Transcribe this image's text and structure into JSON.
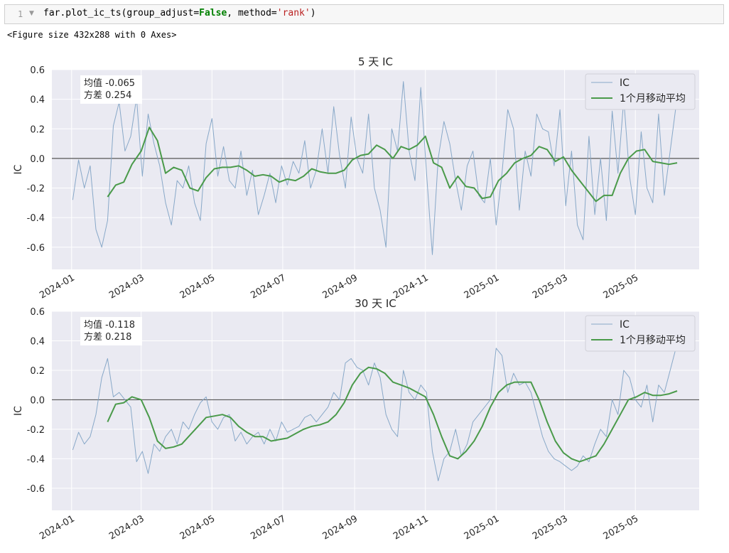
{
  "cell": {
    "line_number": "1",
    "code_prefix": "far.plot_ic_ts(group_adjust=",
    "code_keyword": "False",
    "code_mid": ", method=",
    "code_string": "'rank'",
    "code_suffix": ")"
  },
  "output_text": "<Figure size 432x288 with 0 Axes>",
  "colors": {
    "ic": "#88a8c8",
    "ma": "#4a9a4a",
    "zero": "#555555",
    "plot_bg": "#eaeaf2",
    "grid": "#ffffff"
  },
  "chart_data": [
    {
      "type": "line",
      "title": "5 天 IC",
      "ylabel": "IC",
      "ylim": [
        -0.75,
        0.6
      ],
      "yticks": [
        "0.6",
        "0.4",
        "0.2",
        "0.0",
        "-0.2",
        "-0.4",
        "-0.6"
      ],
      "ytick_values": [
        0.6,
        0.4,
        0.2,
        0.0,
        -0.2,
        -0.4,
        -0.6
      ],
      "xlim": [
        "2023-12-15",
        "2025-06-25"
      ],
      "xticks": [
        "2024-01",
        "2024-03",
        "2024-05",
        "2024-07",
        "2024-09",
        "2024-11",
        "2025-01",
        "2025-03",
        "2025-05"
      ],
      "xtick_dates": [
        "2024-01-01",
        "2024-03-01",
        "2024-05-01",
        "2024-07-01",
        "2024-09-01",
        "2024-11-01",
        "2025-01-01",
        "2025-03-01",
        "2025-05-01"
      ],
      "stats": {
        "mean": "均值 -0.065",
        "std": "方差 0.254"
      },
      "legend": {
        "position": "top-right",
        "entries": [
          "IC",
          "1个月移动平均"
        ]
      },
      "grid": true,
      "series": [
        {
          "name": "IC",
          "x": [
            "2024-01-02",
            "2024-01-07",
            "2024-01-12",
            "2024-01-17",
            "2024-01-22",
            "2024-01-27",
            "2024-02-01",
            "2024-02-06",
            "2024-02-11",
            "2024-02-16",
            "2024-02-21",
            "2024-02-26",
            "2024-03-02",
            "2024-03-07",
            "2024-03-12",
            "2024-03-17",
            "2024-03-22",
            "2024-03-27",
            "2024-04-01",
            "2024-04-06",
            "2024-04-11",
            "2024-04-16",
            "2024-04-21",
            "2024-04-26",
            "2024-05-01",
            "2024-05-06",
            "2024-05-11",
            "2024-05-16",
            "2024-05-21",
            "2024-05-26",
            "2024-05-31",
            "2024-06-05",
            "2024-06-10",
            "2024-06-15",
            "2024-06-20",
            "2024-06-25",
            "2024-06-30",
            "2024-07-05",
            "2024-07-10",
            "2024-07-15",
            "2024-07-20",
            "2024-07-25",
            "2024-07-30",
            "2024-08-04",
            "2024-08-09",
            "2024-08-14",
            "2024-08-19",
            "2024-08-24",
            "2024-08-29",
            "2024-09-03",
            "2024-09-08",
            "2024-09-13",
            "2024-09-18",
            "2024-09-23",
            "2024-09-28",
            "2024-10-03",
            "2024-10-08",
            "2024-10-13",
            "2024-10-18",
            "2024-10-23",
            "2024-10-28",
            "2024-11-02",
            "2024-11-07",
            "2024-11-12",
            "2024-11-17",
            "2024-11-22",
            "2024-11-27",
            "2024-12-02",
            "2024-12-07",
            "2024-12-12",
            "2024-12-17",
            "2024-12-22",
            "2024-12-27",
            "2025-01-01",
            "2025-01-06",
            "2025-01-11",
            "2025-01-16",
            "2025-01-21",
            "2025-01-26",
            "2025-01-31",
            "2025-02-05",
            "2025-02-10",
            "2025-02-15",
            "2025-02-20",
            "2025-02-25",
            "2025-03-02",
            "2025-03-07",
            "2025-03-12",
            "2025-03-17",
            "2025-03-22",
            "2025-03-27",
            "2025-04-01",
            "2025-04-06",
            "2025-04-11",
            "2025-04-16",
            "2025-04-21",
            "2025-04-26",
            "2025-05-01",
            "2025-05-06",
            "2025-05-11",
            "2025-05-16",
            "2025-05-21",
            "2025-05-26",
            "2025-05-31",
            "2025-06-05"
          ],
          "y": [
            -0.28,
            -0.01,
            -0.2,
            -0.05,
            -0.48,
            -0.6,
            -0.42,
            0.22,
            0.38,
            0.05,
            0.15,
            0.41,
            -0.12,
            0.3,
            0.1,
            -0.05,
            -0.3,
            -0.45,
            -0.15,
            -0.2,
            -0.05,
            -0.3,
            -0.42,
            0.1,
            0.27,
            -0.12,
            0.08,
            -0.15,
            -0.2,
            0.05,
            -0.25,
            -0.08,
            -0.38,
            -0.25,
            -0.1,
            -0.3,
            -0.05,
            -0.18,
            -0.02,
            -0.1,
            0.12,
            -0.2,
            -0.08,
            0.2,
            -0.1,
            0.35,
            0.02,
            -0.2,
            0.28,
            0.0,
            -0.1,
            0.3,
            -0.2,
            -0.35,
            -0.6,
            0.2,
            0.05,
            0.52,
            0.05,
            -0.15,
            0.48,
            -0.1,
            -0.65,
            0.0,
            0.25,
            0.1,
            -0.15,
            -0.35,
            -0.05,
            0.05,
            -0.25,
            -0.3,
            0.0,
            -0.45,
            -0.1,
            0.33,
            0.2,
            -0.35,
            0.05,
            -0.12,
            0.3,
            0.2,
            0.18,
            -0.05,
            0.33,
            -0.32,
            0.05,
            -0.45,
            -0.55,
            0.15,
            -0.38,
            0.0,
            -0.42,
            0.32,
            -0.1,
            0.4,
            -0.12,
            -0.38,
            0.18,
            -0.2,
            -0.3,
            0.3,
            -0.25,
            0.05,
            0.35
          ],
          "color": "#88a8c8"
        },
        {
          "name": "1个月移动平均",
          "x": [
            "2024-02-01",
            "2024-02-08",
            "2024-02-15",
            "2024-02-22",
            "2024-03-01",
            "2024-03-08",
            "2024-03-15",
            "2024-03-22",
            "2024-03-29",
            "2024-04-05",
            "2024-04-12",
            "2024-04-19",
            "2024-04-26",
            "2024-05-03",
            "2024-05-10",
            "2024-05-17",
            "2024-05-24",
            "2024-05-31",
            "2024-06-07",
            "2024-06-14",
            "2024-06-21",
            "2024-06-28",
            "2024-07-05",
            "2024-07-12",
            "2024-07-19",
            "2024-07-26",
            "2024-08-02",
            "2024-08-09",
            "2024-08-16",
            "2024-08-23",
            "2024-08-30",
            "2024-09-06",
            "2024-09-13",
            "2024-09-20",
            "2024-09-27",
            "2024-10-04",
            "2024-10-11",
            "2024-10-18",
            "2024-10-25",
            "2024-11-01",
            "2024-11-08",
            "2024-11-15",
            "2024-11-22",
            "2024-11-29",
            "2024-12-06",
            "2024-12-13",
            "2024-12-20",
            "2024-12-27",
            "2025-01-03",
            "2025-01-10",
            "2025-01-17",
            "2025-01-24",
            "2025-01-31",
            "2025-02-07",
            "2025-02-14",
            "2025-02-21",
            "2025-02-28",
            "2025-03-07",
            "2025-03-14",
            "2025-03-21",
            "2025-03-28",
            "2025-04-04",
            "2025-04-11",
            "2025-04-18",
            "2025-04-25",
            "2025-05-02",
            "2025-05-09",
            "2025-05-16",
            "2025-05-23",
            "2025-05-30",
            "2025-06-06"
          ],
          "y": [
            -0.26,
            -0.18,
            -0.16,
            -0.04,
            0.05,
            0.21,
            0.12,
            -0.1,
            -0.06,
            -0.08,
            -0.2,
            -0.22,
            -0.13,
            -0.07,
            -0.06,
            -0.06,
            -0.05,
            -0.08,
            -0.12,
            -0.11,
            -0.12,
            -0.16,
            -0.14,
            -0.15,
            -0.12,
            -0.07,
            -0.09,
            -0.1,
            -0.1,
            -0.08,
            -0.01,
            0.02,
            0.03,
            0.09,
            0.06,
            0.0,
            0.08,
            0.06,
            0.09,
            0.15,
            -0.03,
            -0.06,
            -0.2,
            -0.12,
            -0.19,
            -0.2,
            -0.27,
            -0.26,
            -0.15,
            -0.1,
            -0.03,
            0.0,
            0.02,
            0.08,
            0.06,
            -0.02,
            0.01,
            -0.08,
            -0.15,
            -0.22,
            -0.29,
            -0.25,
            -0.25,
            -0.1,
            0.0,
            0.05,
            0.06,
            -0.02,
            -0.03,
            -0.04,
            -0.03
          ],
          "color": "#4a9a4a"
        }
      ]
    },
    {
      "type": "line",
      "title": "30 天 IC",
      "ylabel": "IC",
      "ylim": [
        -0.75,
        0.6
      ],
      "yticks": [
        "0.6",
        "0.4",
        "0.2",
        "0.0",
        "-0.2",
        "-0.4",
        "-0.6"
      ],
      "ytick_values": [
        0.6,
        0.4,
        0.2,
        0.0,
        -0.2,
        -0.4,
        -0.6
      ],
      "xlim": [
        "2023-12-15",
        "2025-06-25"
      ],
      "xticks": [
        "2024-01",
        "2024-03",
        "2024-05",
        "2024-07",
        "2024-09",
        "2024-11",
        "2025-01",
        "2025-03",
        "2025-05"
      ],
      "xtick_dates": [
        "2024-01-01",
        "2024-03-01",
        "2024-05-01",
        "2024-07-01",
        "2024-09-01",
        "2024-11-01",
        "2025-01-01",
        "2025-03-01",
        "2025-05-01"
      ],
      "stats": {
        "mean": "均值 -0.118",
        "std": "方差 0.218"
      },
      "legend": {
        "position": "top-right",
        "entries": [
          "IC",
          "1个月移动平均"
        ]
      },
      "grid": true,
      "series": [
        {
          "name": "IC",
          "x": [
            "2024-01-02",
            "2024-01-07",
            "2024-01-12",
            "2024-01-17",
            "2024-01-22",
            "2024-01-27",
            "2024-02-01",
            "2024-02-06",
            "2024-02-11",
            "2024-02-16",
            "2024-02-21",
            "2024-02-26",
            "2024-03-02",
            "2024-03-07",
            "2024-03-12",
            "2024-03-17",
            "2024-03-22",
            "2024-03-27",
            "2024-04-01",
            "2024-04-06",
            "2024-04-11",
            "2024-04-16",
            "2024-04-21",
            "2024-04-26",
            "2024-05-01",
            "2024-05-06",
            "2024-05-11",
            "2024-05-16",
            "2024-05-21",
            "2024-05-26",
            "2024-05-31",
            "2024-06-05",
            "2024-06-10",
            "2024-06-15",
            "2024-06-20",
            "2024-06-25",
            "2024-06-30",
            "2024-07-05",
            "2024-07-10",
            "2024-07-15",
            "2024-07-20",
            "2024-07-25",
            "2024-07-30",
            "2024-08-04",
            "2024-08-09",
            "2024-08-14",
            "2024-08-19",
            "2024-08-24",
            "2024-08-29",
            "2024-09-03",
            "2024-09-08",
            "2024-09-13",
            "2024-09-18",
            "2024-09-23",
            "2024-09-28",
            "2024-10-03",
            "2024-10-08",
            "2024-10-13",
            "2024-10-18",
            "2024-10-23",
            "2024-10-28",
            "2024-11-02",
            "2024-11-07",
            "2024-11-12",
            "2024-11-17",
            "2024-11-22",
            "2024-11-27",
            "2024-12-02",
            "2024-12-07",
            "2024-12-12",
            "2024-12-17",
            "2024-12-22",
            "2024-12-27",
            "2025-01-01",
            "2025-01-06",
            "2025-01-11",
            "2025-01-16",
            "2025-01-21",
            "2025-01-26",
            "2025-01-31",
            "2025-02-05",
            "2025-02-10",
            "2025-02-15",
            "2025-02-20",
            "2025-02-25",
            "2025-03-02",
            "2025-03-07",
            "2025-03-12",
            "2025-03-17",
            "2025-03-22",
            "2025-03-27",
            "2025-04-01",
            "2025-04-06",
            "2025-04-11",
            "2025-04-16",
            "2025-04-21",
            "2025-04-26",
            "2025-05-01",
            "2025-05-06",
            "2025-05-11",
            "2025-05-16",
            "2025-05-21",
            "2025-05-26",
            "2025-05-31",
            "2025-06-05"
          ],
          "y": [
            -0.34,
            -0.22,
            -0.3,
            -0.25,
            -0.1,
            0.15,
            0.28,
            0.02,
            0.05,
            0.0,
            -0.05,
            -0.42,
            -0.35,
            -0.5,
            -0.3,
            -0.35,
            -0.25,
            -0.2,
            -0.3,
            -0.15,
            -0.2,
            -0.1,
            -0.02,
            0.02,
            -0.15,
            -0.2,
            -0.12,
            -0.1,
            -0.28,
            -0.22,
            -0.3,
            -0.25,
            -0.22,
            -0.3,
            -0.2,
            -0.28,
            -0.15,
            -0.22,
            -0.2,
            -0.18,
            -0.12,
            -0.1,
            -0.15,
            -0.1,
            -0.05,
            0.05,
            0.0,
            0.25,
            0.28,
            0.22,
            0.2,
            0.1,
            0.25,
            0.15,
            -0.1,
            -0.2,
            -0.25,
            0.2,
            0.05,
            0.0,
            0.1,
            0.05,
            -0.35,
            -0.55,
            -0.4,
            -0.35,
            -0.2,
            -0.38,
            -0.3,
            -0.15,
            -0.1,
            -0.05,
            0.0,
            0.35,
            0.3,
            0.05,
            0.18,
            0.1,
            0.12,
            0.05,
            -0.1,
            -0.25,
            -0.35,
            -0.4,
            -0.42,
            -0.45,
            -0.48,
            -0.45,
            -0.38,
            -0.42,
            -0.3,
            -0.2,
            -0.25,
            0.0,
            -0.1,
            0.2,
            0.15,
            0.0,
            -0.05,
            0.1,
            -0.15,
            0.1,
            0.05,
            0.2,
            0.35
          ],
          "color": "#88a8c8"
        },
        {
          "name": "1个月移动平均",
          "x": [
            "2024-02-01",
            "2024-02-08",
            "2024-02-15",
            "2024-02-22",
            "2024-03-01",
            "2024-03-08",
            "2024-03-15",
            "2024-03-22",
            "2024-03-29",
            "2024-04-05",
            "2024-04-12",
            "2024-04-19",
            "2024-04-26",
            "2024-05-03",
            "2024-05-10",
            "2024-05-17",
            "2024-05-24",
            "2024-05-31",
            "2024-06-07",
            "2024-06-14",
            "2024-06-21",
            "2024-06-28",
            "2024-07-05",
            "2024-07-12",
            "2024-07-19",
            "2024-07-26",
            "2024-08-02",
            "2024-08-09",
            "2024-08-16",
            "2024-08-23",
            "2024-08-30",
            "2024-09-06",
            "2024-09-13",
            "2024-09-20",
            "2024-09-27",
            "2024-10-04",
            "2024-10-11",
            "2024-10-18",
            "2024-10-25",
            "2024-11-01",
            "2024-11-08",
            "2024-11-15",
            "2024-11-22",
            "2024-11-29",
            "2024-12-06",
            "2024-12-13",
            "2024-12-20",
            "2024-12-27",
            "2025-01-03",
            "2025-01-10",
            "2025-01-17",
            "2025-01-24",
            "2025-01-31",
            "2025-02-07",
            "2025-02-14",
            "2025-02-21",
            "2025-02-28",
            "2025-03-07",
            "2025-03-14",
            "2025-03-21",
            "2025-03-28",
            "2025-04-04",
            "2025-04-11",
            "2025-04-18",
            "2025-04-25",
            "2025-05-02",
            "2025-05-09",
            "2025-05-16",
            "2025-05-23",
            "2025-05-30",
            "2025-06-06"
          ],
          "y": [
            -0.15,
            -0.03,
            -0.02,
            0.02,
            0.0,
            -0.12,
            -0.28,
            -0.33,
            -0.32,
            -0.3,
            -0.24,
            -0.18,
            -0.12,
            -0.11,
            -0.1,
            -0.12,
            -0.18,
            -0.22,
            -0.25,
            -0.25,
            -0.28,
            -0.27,
            -0.26,
            -0.23,
            -0.2,
            -0.18,
            -0.17,
            -0.15,
            -0.1,
            -0.02,
            0.1,
            0.18,
            0.22,
            0.21,
            0.18,
            0.12,
            0.1,
            0.08,
            0.05,
            0.02,
            -0.1,
            -0.25,
            -0.38,
            -0.4,
            -0.35,
            -0.28,
            -0.18,
            -0.05,
            0.05,
            0.1,
            0.12,
            0.12,
            0.12,
            0.0,
            -0.15,
            -0.28,
            -0.36,
            -0.4,
            -0.42,
            -0.4,
            -0.38,
            -0.3,
            -0.2,
            -0.1,
            0.0,
            0.02,
            0.05,
            0.03,
            0.03,
            0.04,
            0.06
          ],
          "color": "#4a9a4a"
        }
      ]
    }
  ]
}
